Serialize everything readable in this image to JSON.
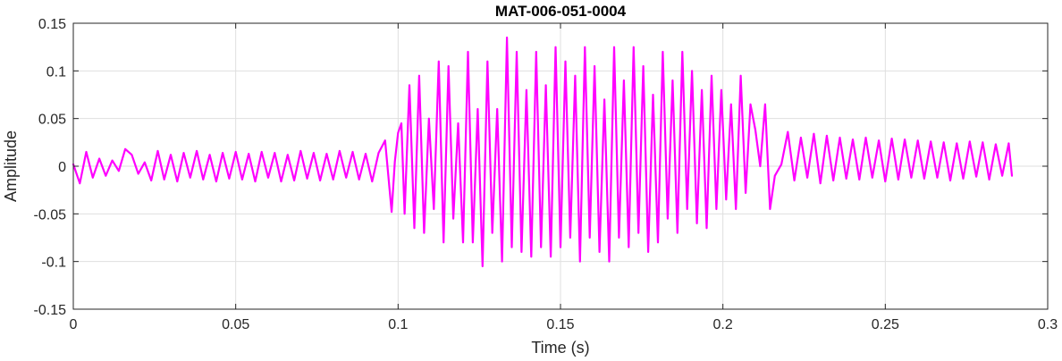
{
  "chart_data": {
    "type": "line",
    "title": "MAT-006-051-0004",
    "xlabel": "Time (s)",
    "ylabel": "Amplitude",
    "xlim": [
      0,
      0.3
    ],
    "ylim": [
      -0.15,
      0.15
    ],
    "grid": true,
    "x_ticks": [
      0,
      0.05,
      0.1,
      0.15,
      0.2,
      0.25,
      0.3
    ],
    "x_tick_labels": [
      "0",
      "0.05",
      "0.1",
      "0.15",
      "0.2",
      "0.25",
      "0.3"
    ],
    "y_ticks": [
      -0.15,
      -0.1,
      -0.05,
      0,
      0.05,
      0.1,
      0.15
    ],
    "y_tick_labels": [
      "-0.15",
      "-0.1",
      "-0.05",
      "0",
      "0.05",
      "0.1",
      "0.15"
    ],
    "series": [
      {
        "color": "#ff00ff",
        "x": [
          0,
          0.002,
          0.004,
          0.006,
          0.008,
          0.01,
          0.012,
          0.014,
          0.016,
          0.018,
          0.02,
          0.022,
          0.024,
          0.026,
          0.028,
          0.03,
          0.032,
          0.034,
          0.036,
          0.038,
          0.04,
          0.042,
          0.044,
          0.046,
          0.048,
          0.05,
          0.052,
          0.054,
          0.056,
          0.058,
          0.06,
          0.062,
          0.064,
          0.066,
          0.068,
          0.07,
          0.072,
          0.074,
          0.076,
          0.078,
          0.08,
          0.082,
          0.084,
          0.086,
          0.088,
          0.09,
          0.092,
          0.094,
          0.096,
          0.097,
          0.098,
          0.099,
          0.1,
          0.101,
          0.102,
          0.1035,
          0.105,
          0.1065,
          0.108,
          0.1095,
          0.111,
          0.1125,
          0.114,
          0.1155,
          0.117,
          0.1185,
          0.12,
          0.1215,
          0.123,
          0.1245,
          0.126,
          0.1275,
          0.129,
          0.1305,
          0.132,
          0.1335,
          0.135,
          0.1365,
          0.138,
          0.1395,
          0.141,
          0.1425,
          0.144,
          0.1455,
          0.147,
          0.1485,
          0.15,
          0.1515,
          0.153,
          0.1545,
          0.156,
          0.1575,
          0.159,
          0.1605,
          0.162,
          0.1635,
          0.165,
          0.1665,
          0.168,
          0.1695,
          0.171,
          0.1725,
          0.174,
          0.1755,
          0.177,
          0.1785,
          0.18,
          0.1815,
          0.183,
          0.1845,
          0.186,
          0.1875,
          0.189,
          0.1905,
          0.192,
          0.1935,
          0.195,
          0.1965,
          0.198,
          0.1995,
          0.201,
          0.2025,
          0.204,
          0.2055,
          0.207,
          0.2085,
          0.21,
          0.2115,
          0.213,
          0.2145,
          0.216,
          0.218,
          0.22,
          0.222,
          0.224,
          0.226,
          0.228,
          0.23,
          0.232,
          0.234,
          0.236,
          0.238,
          0.24,
          0.242,
          0.244,
          0.246,
          0.248,
          0.25,
          0.252,
          0.254,
          0.256,
          0.258,
          0.26,
          0.262,
          0.264,
          0.266,
          0.268,
          0.27,
          0.272,
          0.274,
          0.276,
          0.278,
          0.28,
          0.282,
          0.284,
          0.286,
          0.288,
          0.289
        ],
        "y": [
          0.002,
          -0.018,
          0.015,
          -0.012,
          0.008,
          -0.01,
          0.006,
          -0.005,
          0.018,
          0.012,
          -0.008,
          0.004,
          -0.015,
          0.016,
          -0.014,
          0.012,
          -0.016,
          0.014,
          -0.012,
          0.016,
          -0.014,
          0.012,
          -0.016,
          0.014,
          -0.013,
          0.015,
          -0.014,
          0.013,
          -0.016,
          0.015,
          -0.012,
          0.014,
          -0.016,
          0.012,
          -0.015,
          0.016,
          -0.013,
          0.014,
          -0.015,
          0.013,
          -0.014,
          0.016,
          -0.012,
          0.015,
          -0.014,
          0.013,
          -0.016,
          0.014,
          0.027,
          -0.01,
          -0.048,
          0.005,
          0.035,
          0.045,
          -0.05,
          0.085,
          -0.065,
          0.095,
          -0.07,
          0.05,
          -0.045,
          0.11,
          -0.08,
          0.105,
          -0.055,
          0.045,
          -0.08,
          0.12,
          -0.08,
          0.06,
          -0.105,
          0.11,
          -0.07,
          0.06,
          -0.1,
          0.135,
          -0.085,
          0.12,
          -0.09,
          0.08,
          -0.095,
          0.12,
          -0.085,
          0.085,
          -0.095,
          0.125,
          -0.085,
          0.11,
          -0.075,
          0.095,
          -0.1,
          0.125,
          -0.075,
          0.105,
          -0.09,
          0.07,
          -0.1,
          0.125,
          -0.075,
          0.09,
          -0.085,
          0.125,
          -0.07,
          0.105,
          -0.09,
          0.075,
          -0.08,
          0.12,
          -0.055,
          0.09,
          -0.07,
          0.12,
          -0.045,
          0.1,
          -0.06,
          0.08,
          -0.065,
          0.095,
          -0.045,
          0.08,
          -0.035,
          0.065,
          -0.045,
          0.095,
          -0.028,
          0.065,
          0.038,
          0.0,
          0.065,
          -0.045,
          -0.01,
          0.002,
          0.036,
          -0.015,
          0.03,
          -0.012,
          0.034,
          -0.018,
          0.032,
          -0.015,
          0.03,
          -0.013,
          0.028,
          -0.014,
          0.03,
          -0.012,
          0.027,
          -0.016,
          0.029,
          -0.014,
          0.028,
          -0.012,
          0.027,
          -0.013,
          0.026,
          -0.012,
          0.025,
          -0.015,
          0.024,
          -0.013,
          0.026,
          -0.011,
          0.025,
          -0.014,
          0.023,
          -0.01,
          0.024,
          -0.01
        ]
      }
    ]
  }
}
